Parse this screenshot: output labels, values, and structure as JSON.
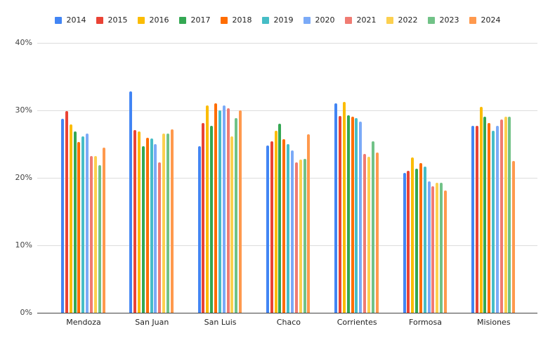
{
  "chart_data": {
    "type": "bar",
    "title": "",
    "xlabel": "",
    "ylabel": "",
    "ylim": [
      0,
      40
    ],
    "y_ticks": [
      "0%",
      "10%",
      "20%",
      "30%",
      "40%"
    ],
    "grid": true,
    "legend_position": "top",
    "categories": [
      "Mendoza",
      "San Juan",
      "San Luis",
      "Chaco",
      "Corrientes",
      "Formosa",
      "Misiones"
    ],
    "series": [
      {
        "name": "2014",
        "color": "#4285f4",
        "values": [
          28.7,
          32.8,
          24.7,
          24.8,
          31.0,
          20.7,
          27.7
        ]
      },
      {
        "name": "2015",
        "color": "#ea4335",
        "values": [
          29.9,
          27.1,
          28.1,
          25.4,
          29.2,
          21.0,
          27.7
        ]
      },
      {
        "name": "2016",
        "color": "#fbbc04",
        "values": [
          27.9,
          26.9,
          30.7,
          27.0,
          31.3,
          23.0,
          30.5
        ]
      },
      {
        "name": "2017",
        "color": "#34a853",
        "values": [
          26.9,
          24.7,
          27.7,
          28.0,
          29.3,
          21.4,
          29.1
        ]
      },
      {
        "name": "2018",
        "color": "#ff6d01",
        "values": [
          25.3,
          25.9,
          31.0,
          25.7,
          29.1,
          22.2,
          28.1
        ]
      },
      {
        "name": "2019",
        "color": "#46bdc6",
        "values": [
          26.1,
          25.8,
          30.0,
          25.0,
          28.9,
          21.7,
          27.0
        ]
      },
      {
        "name": "2020",
        "color": "#7baaf7",
        "values": [
          26.6,
          25.0,
          30.7,
          24.1,
          28.3,
          19.5,
          27.7
        ]
      },
      {
        "name": "2021",
        "color": "#f07b72",
        "values": [
          23.2,
          22.3,
          30.3,
          22.3,
          23.5,
          18.7,
          28.6
        ]
      },
      {
        "name": "2022",
        "color": "#fcd04f",
        "values": [
          23.2,
          26.6,
          26.1,
          22.7,
          23.1,
          19.3,
          29.1
        ]
      },
      {
        "name": "2023",
        "color": "#71c287",
        "values": [
          21.9,
          26.6,
          28.9,
          22.8,
          25.4,
          19.3,
          29.1
        ]
      },
      {
        "name": "2024",
        "color": "#ff994d",
        "values": [
          24.5,
          27.2,
          30.0,
          26.5,
          23.8,
          18.1,
          22.5
        ]
      }
    ]
  }
}
